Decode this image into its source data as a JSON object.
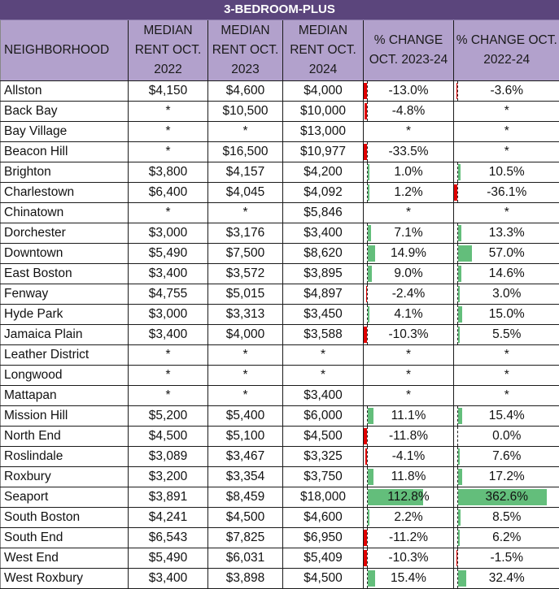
{
  "title": "3-BEDROOM-PLUS",
  "columns": [
    "NEIGHBORHOOD",
    "MEDIAN RENT OCT. 2022",
    "MEDIAN RENT OCT. 2023",
    "MEDIAN RENT OCT. 2024",
    "% CHANGE OCT. 2023-24",
    "% CHANGE OCT. 2022-24"
  ],
  "colors": {
    "title_bg": "#5b457c",
    "header_bg": "#b2a1cc",
    "bar_positive": "#63be7b",
    "bar_negative": "#e00000"
  },
  "rows": [
    {
      "neighborhood": "Allston",
      "rent_2022": "$4,150",
      "rent_2023": "$4,600",
      "rent_2024": "$4,000",
      "chg_23_24": "-13.0%",
      "chg_22_24": "-3.6%"
    },
    {
      "neighborhood": "Back Bay",
      "rent_2022": "*",
      "rent_2023": "$10,500",
      "rent_2024": "$10,000",
      "chg_23_24": "-4.8%",
      "chg_22_24": "*"
    },
    {
      "neighborhood": "Bay Village",
      "rent_2022": "*",
      "rent_2023": "*",
      "rent_2024": "$13,000",
      "chg_23_24": "*",
      "chg_22_24": "*"
    },
    {
      "neighborhood": "Beacon Hill",
      "rent_2022": "*",
      "rent_2023": "$16,500",
      "rent_2024": "$10,977",
      "chg_23_24": "-33.5%",
      "chg_22_24": "*"
    },
    {
      "neighborhood": "Brighton",
      "rent_2022": "$3,800",
      "rent_2023": "$4,157",
      "rent_2024": "$4,200",
      "chg_23_24": "1.0%",
      "chg_22_24": "10.5%"
    },
    {
      "neighborhood": "Charlestown",
      "rent_2022": "$6,400",
      "rent_2023": "$4,045",
      "rent_2024": "$4,092",
      "chg_23_24": "1.2%",
      "chg_22_24": "-36.1%"
    },
    {
      "neighborhood": "Chinatown",
      "rent_2022": "*",
      "rent_2023": "*",
      "rent_2024": "$5,846",
      "chg_23_24": "*",
      "chg_22_24": "*"
    },
    {
      "neighborhood": "Dorchester",
      "rent_2022": "$3,000",
      "rent_2023": "$3,176",
      "rent_2024": "$3,400",
      "chg_23_24": "7.1%",
      "chg_22_24": "13.3%"
    },
    {
      "neighborhood": "Downtown",
      "rent_2022": "$5,490",
      "rent_2023": "$7,500",
      "rent_2024": "$8,620",
      "chg_23_24": "14.9%",
      "chg_22_24": "57.0%"
    },
    {
      "neighborhood": "East Boston",
      "rent_2022": "$3,400",
      "rent_2023": "$3,572",
      "rent_2024": "$3,895",
      "chg_23_24": "9.0%",
      "chg_22_24": "14.6%"
    },
    {
      "neighborhood": "Fenway",
      "rent_2022": "$4,755",
      "rent_2023": "$5,015",
      "rent_2024": "$4,897",
      "chg_23_24": "-2.4%",
      "chg_22_24": "3.0%"
    },
    {
      "neighborhood": "Hyde Park",
      "rent_2022": "$3,000",
      "rent_2023": "$3,313",
      "rent_2024": "$3,450",
      "chg_23_24": "4.1%",
      "chg_22_24": "15.0%"
    },
    {
      "neighborhood": "Jamaica Plain",
      "rent_2022": "$3,400",
      "rent_2023": "$4,000",
      "rent_2024": "$3,588",
      "chg_23_24": "-10.3%",
      "chg_22_24": "5.5%"
    },
    {
      "neighborhood": "Leather District",
      "rent_2022": "*",
      "rent_2023": "*",
      "rent_2024": "*",
      "chg_23_24": "*",
      "chg_22_24": "*"
    },
    {
      "neighborhood": "Longwood",
      "rent_2022": "*",
      "rent_2023": "*",
      "rent_2024": "*",
      "chg_23_24": "*",
      "chg_22_24": "*"
    },
    {
      "neighborhood": "Mattapan",
      "rent_2022": "*",
      "rent_2023": "*",
      "rent_2024": "$3,400",
      "chg_23_24": "*",
      "chg_22_24": "*"
    },
    {
      "neighborhood": "Mission Hill",
      "rent_2022": "$5,200",
      "rent_2023": "$5,400",
      "rent_2024": "$6,000",
      "chg_23_24": "11.1%",
      "chg_22_24": "15.4%"
    },
    {
      "neighborhood": "North End",
      "rent_2022": "$4,500",
      "rent_2023": "$5,100",
      "rent_2024": "$4,500",
      "chg_23_24": "-11.8%",
      "chg_22_24": "0.0%"
    },
    {
      "neighborhood": "Roslindale",
      "rent_2022": "$3,089",
      "rent_2023": "$3,467",
      "rent_2024": "$3,325",
      "chg_23_24": "-4.1%",
      "chg_22_24": "7.6%"
    },
    {
      "neighborhood": "Roxbury",
      "rent_2022": "$3,200",
      "rent_2023": "$3,354",
      "rent_2024": "$3,750",
      "chg_23_24": "11.8%",
      "chg_22_24": "17.2%"
    },
    {
      "neighborhood": "Seaport",
      "rent_2022": "$3,891",
      "rent_2023": "$8,459",
      "rent_2024": "$18,000",
      "chg_23_24": "112.8%",
      "chg_22_24": "362.6%"
    },
    {
      "neighborhood": "South Boston",
      "rent_2022": "$4,241",
      "rent_2023": "$4,500",
      "rent_2024": "$4,600",
      "chg_23_24": "2.2%",
      "chg_22_24": "8.5%"
    },
    {
      "neighborhood": "South End",
      "rent_2022": "$6,543",
      "rent_2023": "$7,825",
      "rent_2024": "$6,950",
      "chg_23_24": "-11.2%",
      "chg_22_24": "6.2%"
    },
    {
      "neighborhood": "West End",
      "rent_2022": "$5,490",
      "rent_2023": "$6,031",
      "rent_2024": "$5,409",
      "chg_23_24": "-10.3%",
      "chg_22_24": "-1.5%"
    },
    {
      "neighborhood": "West Roxbury",
      "rent_2022": "$3,400",
      "rent_2023": "$3,898",
      "rent_2024": "$4,500",
      "chg_23_24": "15.4%",
      "chg_22_24": "32.4%"
    }
  ]
}
